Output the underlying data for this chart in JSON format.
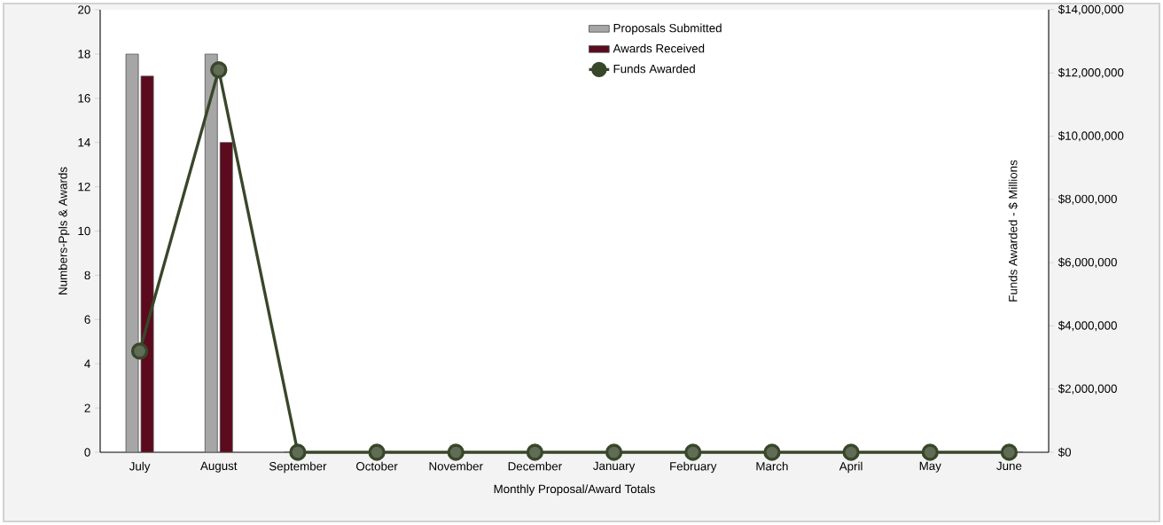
{
  "chart_data": {
    "type": "bar",
    "xlabel": "Monthly Proposal/Award Totals",
    "ylabel": "Numbers-Ppls & Awards",
    "y2label": "Funds Awarded - $ Millions",
    "categories": [
      "July",
      "August",
      "September",
      "October",
      "November",
      "December",
      "January",
      "February",
      "March",
      "April",
      "May",
      "June"
    ],
    "series": [
      {
        "name": "Proposals Submitted",
        "color": "#a6a6a6",
        "values": [
          18,
          18,
          0,
          0,
          0,
          0,
          0,
          0,
          0,
          0,
          0,
          0
        ]
      },
      {
        "name": "Awards Received",
        "color": "#5c0a1e",
        "values": [
          17,
          14,
          0,
          0,
          0,
          0,
          0,
          0,
          0,
          0,
          0,
          0
        ]
      },
      {
        "name": "Funds Awarded",
        "type": "line",
        "axis": "y2",
        "color": "#38472a",
        "values": [
          3200000,
          12100000,
          0,
          0,
          0,
          0,
          0,
          0,
          0,
          0,
          0,
          0
        ]
      }
    ],
    "ylim": [
      0,
      20
    ],
    "yticks": [
      0,
      2,
      4,
      6,
      8,
      10,
      12,
      14,
      16,
      18,
      20
    ],
    "y2lim": [
      0,
      14000000
    ],
    "y2ticks": [
      {
        "value": 0,
        "label": "$0"
      },
      {
        "value": 2000000,
        "label": "$2,000,000"
      },
      {
        "value": 4000000,
        "label": "$4,000,000"
      },
      {
        "value": 6000000,
        "label": "$6,000,000"
      },
      {
        "value": 8000000,
        "label": "$8,000,000"
      },
      {
        "value": 10000000,
        "label": "$10,000,000"
      },
      {
        "value": 12000000,
        "label": "$12,000,000"
      },
      {
        "value": 14000000,
        "label": "$14,000,000"
      }
    ],
    "legend": "top",
    "marker": "circle",
    "line_style": "solid",
    "grid": false
  }
}
